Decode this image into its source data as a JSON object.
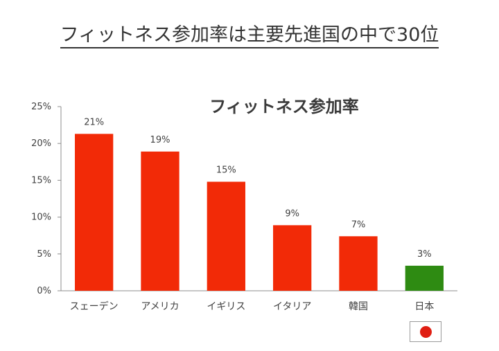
{
  "page_title": "フィットネス参加率は主要先進国の中で30位",
  "flag": {
    "icon": "japan-flag-icon",
    "disc_color": "#e01e12"
  },
  "chart_data": {
    "type": "bar",
    "title": "フィットネス参加率",
    "categories": [
      "スェーデン",
      "アメリカ",
      "イギリス",
      "イタリア",
      "韓国",
      "日本"
    ],
    "values": [
      21.3,
      18.9,
      14.8,
      8.9,
      7.4,
      3.4
    ],
    "data_labels": [
      "21%",
      "19%",
      "15%",
      "9%",
      "7%",
      "3%"
    ],
    "bar_colors": [
      "#f22a07",
      "#f22a07",
      "#f22a07",
      "#f22a07",
      "#f22a07",
      "#2e8b12"
    ],
    "ylim": [
      0,
      25
    ],
    "yticks": [
      "0%",
      "5%",
      "10%",
      "15%",
      "20%",
      "25%"
    ],
    "grid": false,
    "legend": "none"
  }
}
